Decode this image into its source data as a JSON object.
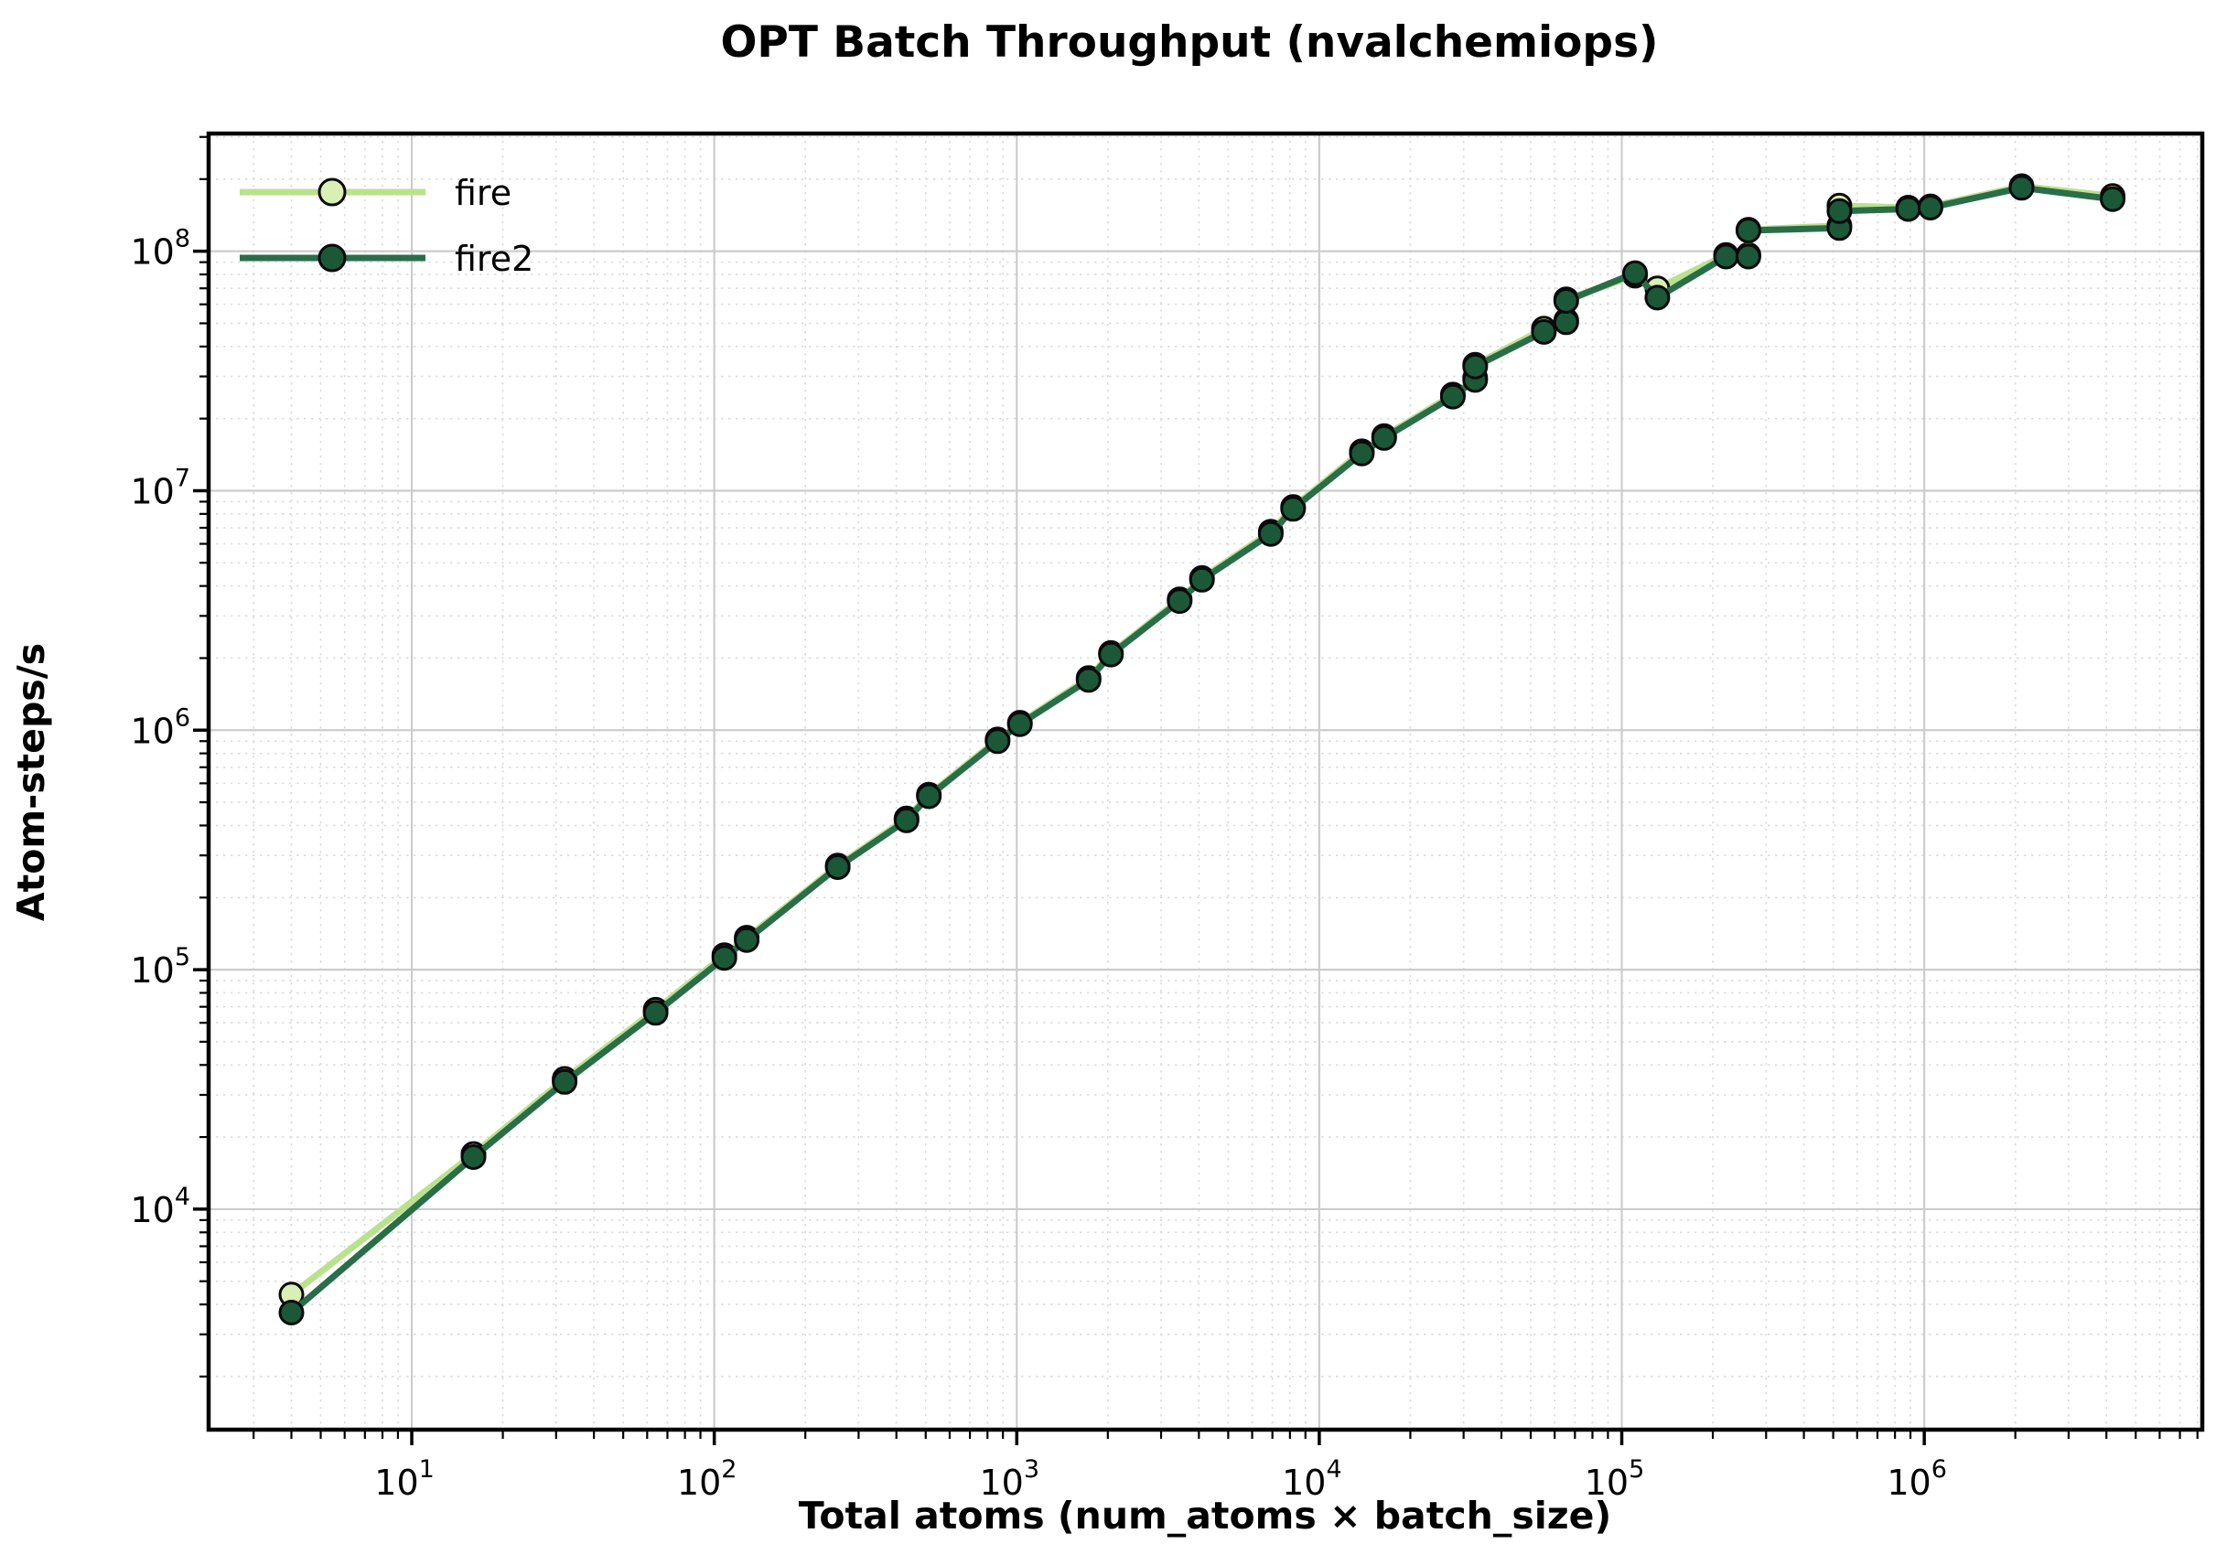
{
  "title": "OPT Batch Throughput (nvalchemiops)",
  "axes": {
    "xlabel": "Total atoms (num_atoms × batch_size)",
    "ylabel": "Atom-steps/s"
  },
  "legend": {
    "items": [
      {
        "label": "fire"
      },
      {
        "label": "fire2"
      }
    ]
  },
  "colors": {
    "fire_line": "#b9e28c",
    "fire_marker": "#d9efb3",
    "fire2_line": "#2a6e49",
    "fire2_marker": "#1b5838",
    "marker_edge": "#0a0a0a",
    "grid_major": "#cccccc",
    "grid_minor": "#dcdcdc",
    "frame": "#000000"
  },
  "chart_data": {
    "type": "line",
    "xscale": "log",
    "yscale": "log",
    "title": "OPT Batch Throughput (nvalchemiops)",
    "xlabel": "Total atoms (num_atoms × batch_size)",
    "ylabel": "Atom-steps/s",
    "xlim": [
      2.13,
      8300000
    ],
    "ylim": [
      1200,
      310000000
    ],
    "x_tick_exponents": [
      1,
      2,
      3,
      4,
      5,
      6
    ],
    "y_tick_exponents": [
      4,
      5,
      6,
      7,
      8
    ],
    "grid": "major solid, minor dotted",
    "legend_position": "upper left",
    "x": [
      4,
      16,
      32,
      64,
      108,
      128,
      256,
      432,
      512,
      864,
      1024,
      1728,
      2048,
      3456,
      4096,
      6912,
      8192,
      13824,
      16384,
      27648,
      32768,
      32768,
      55296,
      65536,
      65536,
      110592,
      131072,
      221184,
      262144,
      262144,
      524288,
      524288,
      884736,
      1048576,
      2097152,
      4194304
    ],
    "series": [
      {
        "name": "fire",
        "values": [
          4400,
          17000,
          35000,
          68000,
          115000,
          136000,
          272000,
          428000,
          538000,
          915000,
          1075000,
          1650000,
          2100000,
          3520000,
          4320000,
          6750000,
          8550000,
          14600000,
          16900000,
          25200000,
          29600000,
          33600000,
          47500000,
          51500000,
          63000000,
          79000000,
          70000000,
          96500000,
          96500000,
          123000000,
          128000000,
          155000000,
          152000000,
          154000000,
          187000000,
          170000000
        ]
      },
      {
        "name": "fire2",
        "values": [
          3700,
          16500,
          34000,
          66000,
          112000,
          133000,
          268000,
          420000,
          530000,
          900000,
          1060000,
          1620000,
          2070000,
          3460000,
          4250000,
          6600000,
          8400000,
          14300000,
          16600000,
          24700000,
          29000000,
          33000000,
          46000000,
          50500000,
          62000000,
          81000000,
          64000000,
          95000000,
          95000000,
          122000000,
          125000000,
          147000000,
          150000000,
          152000000,
          184000000,
          165000000
        ]
      }
    ]
  }
}
